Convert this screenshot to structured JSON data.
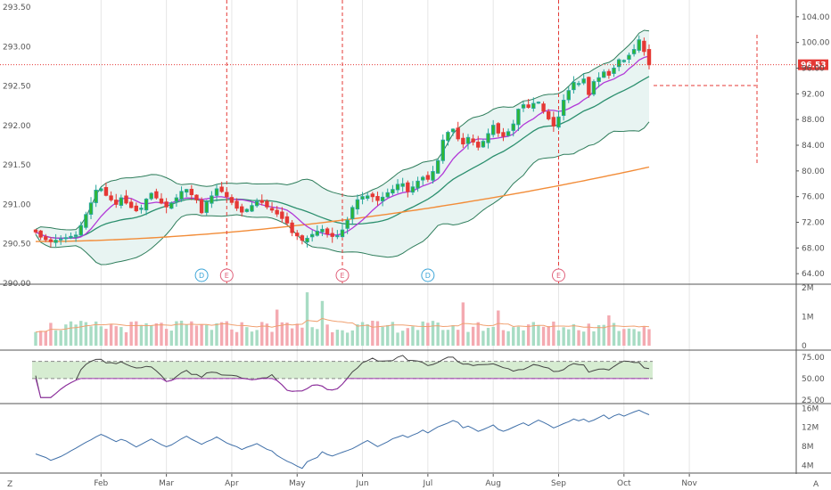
{
  "chart_data": {
    "type": "candlestick",
    "price_panel": {
      "left_axis": {
        "ticks": [
          "293.50",
          "293.00",
          "292.50",
          "292.00",
          "291.50",
          "291.00",
          "290.50",
          "290.00"
        ],
        "ylim": [
          290.0,
          293.5
        ]
      },
      "right_axis": {
        "ticks": [
          "104.00",
          "100.00",
          "96.00",
          "92.00",
          "88.00",
          "84.00",
          "80.00",
          "76.00",
          "72.00",
          "68.00",
          "64.00"
        ],
        "ylim": [
          62.5,
          105.5
        ]
      },
      "last_price_label": "96.53",
      "last_price": 96.53,
      "close_prices": [
        70.5,
        69.7,
        69.3,
        69.0,
        69.2,
        69.4,
        69.6,
        69.8,
        70.0,
        71.5,
        73.2,
        75.0,
        77.0,
        77.2,
        76.2,
        75.5,
        74.8,
        75.8,
        75.0,
        74.3,
        73.8,
        74.2,
        75.6,
        76.5,
        75.8,
        75.0,
        74.4,
        75.0,
        75.8,
        76.8,
        77.1,
        76.3,
        75.5,
        73.5,
        75.2,
        76.1,
        77.2,
        76.8,
        76.0,
        75.1,
        74.2,
        73.6,
        74.0,
        74.6,
        75.2,
        75.1,
        74.4,
        73.9,
        73.3,
        72.6,
        71.9,
        70.4,
        69.9,
        69.2,
        69.5,
        70.1,
        70.6,
        70.9,
        70.2,
        69.8,
        69.9,
        70.8,
        72.3,
        74.3,
        75.5,
        76.0,
        76.1,
        76.0,
        75.4,
        75.9,
        76.6,
        77.1,
        77.9,
        78.0,
        76.8,
        77.5,
        78.4,
        79.0,
        78.7,
        79.9,
        81.6,
        84.8,
        86.0,
        86.5,
        85.0,
        84.2,
        85.2,
        84.5,
        83.7,
        84.6,
        85.8,
        87.1,
        85.9,
        85.4,
        86.1,
        87.3,
        89.6,
        90.3,
        89.9,
        90.5,
        90.7,
        89.3,
        88.1,
        87.0,
        88.4,
        91.0,
        92.5,
        93.8,
        93.6,
        94.3,
        91.9,
        93.9,
        94.5,
        95.4,
        94.9,
        96.0,
        97.3,
        97.2,
        98.0,
        98.9,
        100.4,
        98.6,
        96.53
      ],
      "sma_50_end": 91.2,
      "sma_200_end": 80.6,
      "series": [
        {
          "name": "price",
          "type": "candlestick"
        },
        {
          "name": "ma-fast",
          "type": "line",
          "color": "#b23ad8"
        },
        {
          "name": "bollinger-basis",
          "type": "line",
          "color": "#2b8f6e"
        },
        {
          "name": "bollinger-upper",
          "type": "line",
          "color": "#2e7d5b"
        },
        {
          "name": "bollinger-lower",
          "type": "line",
          "color": "#2e7d5b"
        },
        {
          "name": "ma-slow",
          "type": "line",
          "color": "#f28c38"
        }
      ],
      "events": [
        {
          "label": "D",
          "kind": "dividend",
          "index": 33
        },
        {
          "label": "E",
          "kind": "earnings",
          "index": 38
        },
        {
          "label": "E",
          "kind": "earnings",
          "index": 61
        },
        {
          "label": "D",
          "kind": "dividend",
          "index": 78
        },
        {
          "label": "E",
          "kind": "earnings",
          "index": 104
        }
      ],
      "marker_vlines_index": [
        38,
        61,
        104
      ]
    },
    "volume_panel": {
      "ticks": [
        "2M",
        "1M",
        "0"
      ],
      "ylim": [
        0,
        2100000
      ]
    },
    "rsi_panel": {
      "ticks": [
        "75.00",
        "50.00",
        "25.00"
      ],
      "band": [
        50,
        70
      ],
      "ylim": [
        22,
        82
      ],
      "rsi_end": 61.5
    },
    "obv_panel": {
      "ticks": [
        "16M",
        "12M",
        "8M",
        "4M"
      ],
      "ylim": [
        2600000,
        16800000
      ]
    },
    "time_axis": {
      "labels": [
        "Feb",
        "Mar",
        "Apr",
        "May",
        "Jun",
        "Jul",
        "Aug",
        "Sep",
        "Oct",
        "Nov"
      ],
      "label_index": [
        13,
        26,
        39,
        52,
        65,
        78,
        91,
        104,
        117,
        130
      ]
    }
  },
  "ui": {
    "corner_left": "Z",
    "corner_right": "A"
  },
  "colors": {
    "up": "#26a69a",
    "up_body": "#2eb82e",
    "down": "#e53935",
    "band_fill": "#e8f4f2",
    "rsi_band_fill": "#d6ecd1",
    "obv_line": "#3f6fa8",
    "price_line": "#e53935",
    "grid": "#e6e6e6",
    "dividend_badge": "#3ea6d8",
    "earnings_badge": "#e0607a"
  }
}
